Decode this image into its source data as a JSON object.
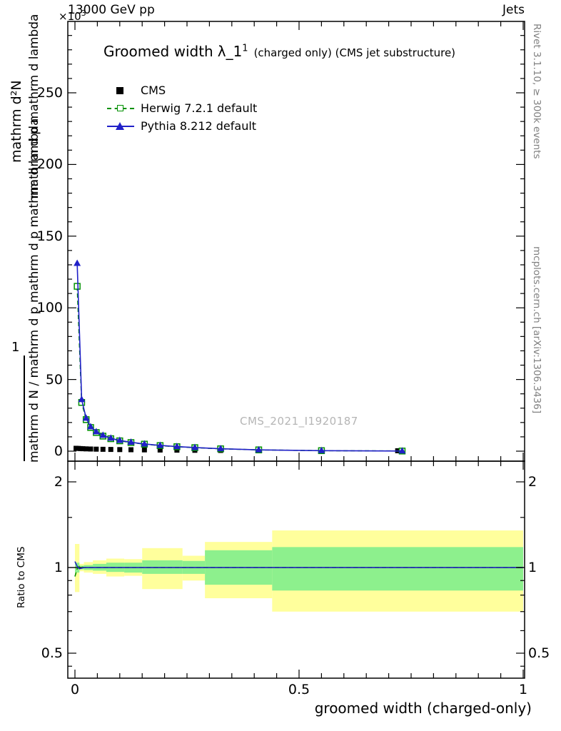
{
  "header": {
    "left": "13000 GeV pp",
    "right": "Jets"
  },
  "title": {
    "main": "Groomed width",
    "lambda": "λ_1",
    "sup": "1",
    "paren": "(charged only) (CMS jet substructure)"
  },
  "legend": {
    "entries": [
      {
        "label": "CMS"
      },
      {
        "label": "Herwig 7.2.1 default"
      },
      {
        "label": "Pythia 8.212 default"
      }
    ]
  },
  "watermark": "CMS_2021_I1920187",
  "right_margin": {
    "rivet": "Rivet 3.1.10, ≥ 300k events",
    "mcplots": "mcplots.cern.ch [arXiv:1306.3436]"
  },
  "axes": {
    "y_multiplier_base": "×10",
    "y_multiplier_exp": "3",
    "xlabel": "groomed width (charged-only)",
    "ratio_ylabel": "Ratio to CMS",
    "ylabel_parts": {
      "top_outer": "mathrm d²N",
      "top_inner": "mathrm d p mathrm d lambda",
      "one": "1",
      "bottom_inner": "mathrm d N / mathrm d p mathrm d p mathrm d lambda"
    }
  },
  "chart_data": {
    "type": "line",
    "title": "Groomed width λ_1^1 (charged only) (CMS jet substructure)",
    "xlabel": "groomed width (charged-only)",
    "colors": {
      "band_yellow": "#ffff9c",
      "band_green": "#8df08d",
      "reference": "#000000"
    },
    "main": {
      "xlim": [
        0,
        1
      ],
      "ylim": [
        0,
        300
      ],
      "y_units": "×10³",
      "x_major_ticks": [
        0,
        0.5,
        1
      ],
      "x_tick_labels": [
        "0",
        "0.5",
        "1"
      ],
      "x_minor_step": 0.05,
      "y_major_ticks": [
        0,
        50,
        100,
        150,
        200,
        250
      ],
      "y_tick_labels": [
        "0",
        "50",
        "100",
        "150",
        "200",
        "250"
      ],
      "y_minor_step": 10,
      "series": [
        {
          "name": "CMS",
          "marker": "square-filled",
          "line": "none",
          "color": "#000000",
          "x": [
            0.0025,
            0.0075,
            0.0125,
            0.0175,
            0.025,
            0.035,
            0.0475,
            0.0625,
            0.08,
            0.1,
            0.125,
            0.155,
            0.19,
            0.2275,
            0.2675,
            0.325,
            0.41,
            0.72
          ],
          "y": [
            2.0,
            1.9,
            1.8,
            1.7,
            1.6,
            1.5,
            1.4,
            1.3,
            1.2,
            1.1,
            1.0,
            0.9,
            0.8,
            0.7,
            0.6,
            0.5,
            0.4,
            0.3
          ]
        },
        {
          "name": "Herwig 7.2.1 default",
          "marker": "square-open",
          "line": "dashed",
          "color": "#009100",
          "x": [
            0.005,
            0.015,
            0.025,
            0.035,
            0.0475,
            0.0625,
            0.08,
            0.1,
            0.125,
            0.155,
            0.19,
            0.2275,
            0.2675,
            0.325,
            0.41,
            0.55,
            0.73
          ],
          "y": [
            115,
            34,
            22,
            16.5,
            13,
            10.5,
            8.7,
            7.2,
            6.0,
            4.9,
            3.9,
            3.1,
            2.45,
            1.65,
            0.9,
            0.35,
            0.1
          ]
        },
        {
          "name": "Pythia 8.212 default",
          "marker": "triangle-filled",
          "line": "solid",
          "color": "#2020c8",
          "x": [
            0.005,
            0.015,
            0.025,
            0.035,
            0.0475,
            0.0625,
            0.08,
            0.1,
            0.125,
            0.155,
            0.19,
            0.2275,
            0.2675,
            0.325,
            0.41,
            0.55,
            0.73
          ],
          "y": [
            131,
            36,
            23,
            17,
            13.5,
            11,
            9,
            7.5,
            6.2,
            5.0,
            4.0,
            3.2,
            2.5,
            1.7,
            0.9,
            0.35,
            0.1
          ]
        }
      ]
    },
    "ratio": {
      "scale": "log",
      "ylim": [
        0.41,
        2.33
      ],
      "y_major_ticks": [
        0.5,
        1,
        2
      ],
      "y_tick_labels": [
        "0.5",
        "1",
        "2"
      ],
      "y_minor_ticks": [
        0.45,
        0.6,
        0.7,
        0.8,
        0.9,
        1.5
      ],
      "reference_line": 1,
      "bands": [
        {
          "x0": 0.0,
          "x1": 0.01,
          "yellow": [
            0.82,
            1.21
          ],
          "green": [
            0.96,
            1.04
          ]
        },
        {
          "x0": 0.01,
          "x1": 0.02,
          "yellow": [
            0.97,
            1.03
          ],
          "green": [
            0.985,
            1.015
          ]
        },
        {
          "x0": 0.02,
          "x1": 0.04,
          "yellow": [
            0.96,
            1.045
          ],
          "green": [
            0.98,
            1.02
          ]
        },
        {
          "x0": 0.04,
          "x1": 0.07,
          "yellow": [
            0.95,
            1.06
          ],
          "green": [
            0.975,
            1.03
          ]
        },
        {
          "x0": 0.07,
          "x1": 0.11,
          "yellow": [
            0.93,
            1.075
          ],
          "green": [
            0.965,
            1.04
          ]
        },
        {
          "x0": 0.11,
          "x1": 0.15,
          "yellow": [
            0.935,
            1.07
          ],
          "green": [
            0.96,
            1.04
          ]
        },
        {
          "x0": 0.15,
          "x1": 0.24,
          "yellow": [
            0.84,
            1.17
          ],
          "green": [
            0.95,
            1.06
          ]
        },
        {
          "x0": 0.24,
          "x1": 0.29,
          "yellow": [
            0.9,
            1.1
          ],
          "green": [
            0.95,
            1.055
          ]
        },
        {
          "x0": 0.29,
          "x1": 0.44,
          "yellow": [
            0.78,
            1.23
          ],
          "green": [
            0.87,
            1.15
          ]
        },
        {
          "x0": 0.44,
          "x1": 1.0,
          "yellow": [
            0.7,
            1.35
          ],
          "green": [
            0.83,
            1.18
          ]
        }
      ],
      "lines": [
        {
          "name": "Herwig 7.2.1 default",
          "style": "dashed",
          "color": "#009100",
          "x": [
            0.0,
            0.005,
            0.01,
            0.02,
            0.03,
            0.05,
            0.08,
            0.12,
            0.18,
            0.25,
            0.35,
            0.5,
            0.7,
            1.0
          ],
          "r": [
            0.93,
            0.99,
            1.01,
            1.0,
            1.0,
            1.0,
            1.0,
            1.0,
            1.0,
            1.0,
            1.0,
            1.0,
            1.0,
            1.0
          ]
        },
        {
          "name": "Pythia 8.212 default",
          "style": "solid",
          "color": "#2020c8",
          "x": [
            0.0,
            0.005,
            0.01,
            0.02,
            0.03,
            0.05,
            0.08,
            0.12,
            0.18,
            0.25,
            0.35,
            0.5,
            0.7,
            1.0
          ],
          "r": [
            1.05,
            1.01,
            0.99,
            1.0,
            1.0,
            1.0,
            1.0,
            1.0,
            1.0,
            1.0,
            1.0,
            1.0,
            1.0,
            1.0
          ]
        }
      ]
    }
  }
}
